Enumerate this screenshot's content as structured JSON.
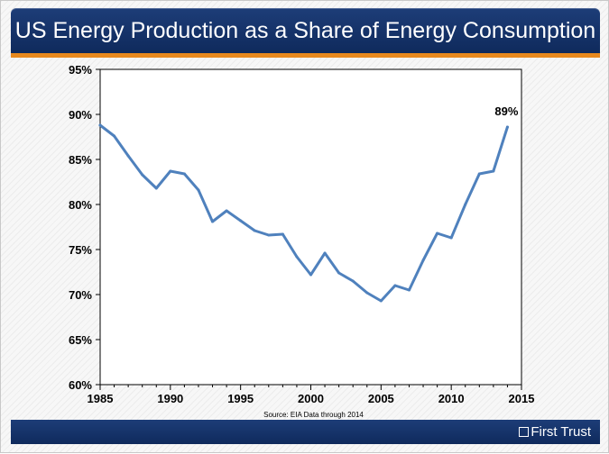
{
  "header": {
    "title": "US Energy Production as a Share of Energy Consumption"
  },
  "footer": {
    "brand": "First Trust"
  },
  "colors": {
    "header_bg": "#163670",
    "accent_orange": "#e8891d",
    "series_line": "#4f81bd"
  },
  "chart_data": {
    "type": "line",
    "title": "US Energy Production as a Share of Energy Consumption",
    "xlabel": "",
    "ylabel": "",
    "source": "Source: EIA Data through 2014",
    "xlim": [
      1985,
      2015
    ],
    "ylim": [
      60,
      95
    ],
    "x_ticks": [
      1985,
      1990,
      1995,
      2000,
      2005,
      2010,
      2015
    ],
    "y_ticks": [
      60,
      65,
      70,
      75,
      80,
      85,
      90,
      95
    ],
    "y_tick_labels": [
      "60%",
      "65%",
      "70%",
      "75%",
      "80%",
      "85%",
      "90%",
      "95%"
    ],
    "grid": false,
    "series": [
      {
        "x": [
          1985,
          1986,
          1987,
          1988,
          1989,
          1990,
          1991,
          1992,
          1993,
          1994,
          1995,
          1996,
          1997,
          1998,
          1999,
          2000,
          2001,
          2002,
          2003,
          2004,
          2005,
          2006,
          2007,
          2008,
          2009,
          2010,
          2011,
          2012,
          2013,
          2014
        ],
        "values": [
          88.8,
          87.6,
          85.4,
          83.3,
          81.8,
          83.7,
          83.4,
          81.6,
          78.1,
          79.3,
          78.2,
          77.1,
          76.6,
          76.7,
          74.2,
          72.2,
          74.6,
          72.4,
          71.5,
          70.2,
          69.3,
          71.0,
          70.5,
          73.8,
          76.8,
          76.3,
          80.0,
          83.4,
          83.7,
          88.6
        ]
      }
    ],
    "annotations": [
      {
        "x": 2014,
        "y": 88.6,
        "text": "89%"
      }
    ]
  }
}
